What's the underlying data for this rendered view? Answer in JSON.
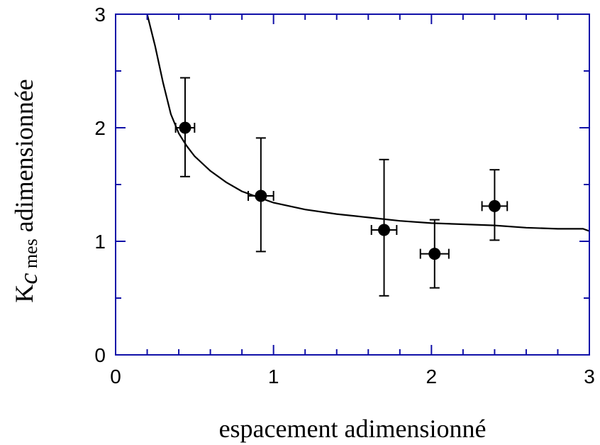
{
  "chart_data": {
    "type": "scatter",
    "xlabel": "espacement adimensionné",
    "ylabel": {
      "base": "K",
      "italic_sub": "c",
      "sub": " mes",
      "rest": " adimensionnée"
    },
    "xlim": [
      0,
      3
    ],
    "ylim": [
      0,
      3
    ],
    "xticks_major": [
      0,
      1,
      2,
      3
    ],
    "yticks_major": [
      0,
      1,
      2,
      3
    ],
    "x_tick_labels": [
      "0",
      "1",
      "2",
      "3"
    ],
    "y_tick_labels": [
      "0",
      "1",
      "2",
      "3"
    ],
    "x_minor_step": 0.2,
    "y_minor_step": 0.5,
    "grid": false,
    "colors": {
      "axes": "#1010a8",
      "data": "#000000"
    },
    "series": [
      {
        "kind": "points_with_errorbars",
        "points": [
          {
            "x": 0.44,
            "y": 2.0,
            "xerr": 0.06,
            "yerr_low": 0.43,
            "yerr_high": 0.44
          },
          {
            "x": 0.92,
            "y": 1.4,
            "xerr": 0.08,
            "yerr_low": 0.49,
            "yerr_high": 0.51
          },
          {
            "x": 1.7,
            "y": 1.1,
            "xerr": 0.08,
            "yerr_low": 0.58,
            "yerr_high": 0.62
          },
          {
            "x": 2.02,
            "y": 0.89,
            "xerr": 0.09,
            "yerr_low": 0.3,
            "yerr_high": 0.3
          },
          {
            "x": 2.4,
            "y": 1.31,
            "xerr": 0.08,
            "yerr_low": 0.3,
            "yerr_high": 0.32
          }
        ]
      },
      {
        "kind": "line",
        "x": [
          0.2,
          0.25,
          0.3,
          0.35,
          0.4,
          0.45,
          0.5,
          0.6,
          0.7,
          0.8,
          0.9,
          1.0,
          1.2,
          1.4,
          1.6,
          1.8,
          2.0,
          2.2,
          2.4,
          2.6,
          2.8,
          2.96,
          3.0
        ],
        "y": [
          3.0,
          2.72,
          2.4,
          2.12,
          1.95,
          1.84,
          1.75,
          1.62,
          1.52,
          1.44,
          1.39,
          1.34,
          1.28,
          1.24,
          1.21,
          1.18,
          1.16,
          1.15,
          1.14,
          1.12,
          1.11,
          1.11,
          1.09
        ]
      }
    ]
  }
}
